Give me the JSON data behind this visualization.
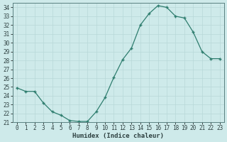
{
  "x": [
    0,
    1,
    2,
    3,
    4,
    5,
    6,
    7,
    8,
    9,
    10,
    11,
    12,
    13,
    14,
    15,
    16,
    17,
    18,
    19,
    20,
    21,
    22,
    23
  ],
  "y": [
    24.9,
    24.5,
    24.5,
    23.2,
    22.2,
    21.8,
    21.2,
    21.1,
    21.1,
    22.2,
    23.8,
    26.1,
    28.1,
    29.4,
    32.0,
    33.3,
    34.2,
    34.0,
    33.0,
    32.8,
    31.2,
    29.0,
    28.2,
    28.2
  ],
  "line_color": "#2e7d6e",
  "marker": "+",
  "xlabel": "Humidex (Indice chaleur)",
  "xlim": [
    -0.5,
    23.5
  ],
  "ylim": [
    21,
    34.5
  ],
  "yticks": [
    21,
    22,
    23,
    24,
    25,
    26,
    27,
    28,
    29,
    30,
    31,
    32,
    33,
    34
  ],
  "xticks": [
    0,
    1,
    2,
    3,
    4,
    5,
    6,
    7,
    8,
    9,
    10,
    11,
    12,
    13,
    14,
    15,
    16,
    17,
    18,
    19,
    20,
    21,
    22,
    23
  ],
  "bg_color": "#ceeaea",
  "grid_color": "#b8d8d8",
  "font_color": "#2e4040",
  "font_family": "monospace",
  "tick_fontsize": 5.5,
  "xlabel_fontsize": 6.5
}
